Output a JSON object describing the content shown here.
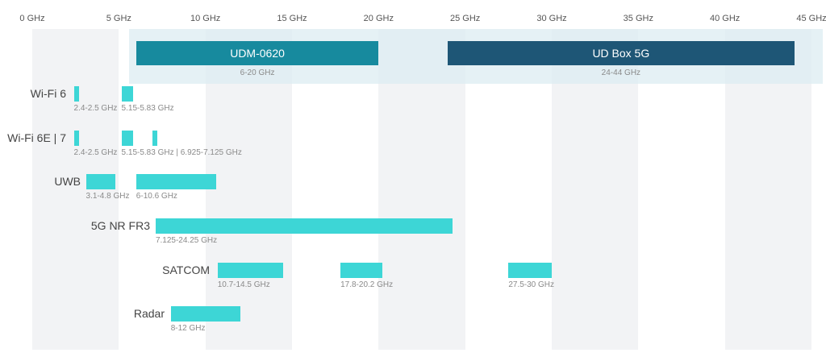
{
  "chart_data": {
    "type": "bar",
    "orientation": "horizontal-range",
    "x_axis": {
      "ticks": [
        "0 GHz",
        "5 GHz",
        "10 GHz",
        "15 GHz",
        "20 GHz",
        "25 GHz",
        "30 GHz",
        "35 GHz",
        "40 GHz",
        "45 GHz"
      ],
      "xlim": [
        0,
        45
      ],
      "unit": "GHz"
    },
    "products": [
      {
        "name": "UDM-0620",
        "start": 6,
        "end": 20,
        "range_label": "6-20 GHz",
        "color": "#178a9e"
      },
      {
        "name": "UD Box 5G",
        "start": 24,
        "end": 44,
        "range_label": "24-44 GHz",
        "color": "#1e5676"
      }
    ],
    "rows": [
      {
        "label": "Wi-Fi 6",
        "segments": [
          {
            "start": 2.4,
            "end": 2.5,
            "label": "2.4-2.5 GHz"
          },
          {
            "start": 5.15,
            "end": 5.83,
            "label": "5.15-5.83 GHz"
          }
        ]
      },
      {
        "label": "Wi-Fi 6E | 7",
        "segments": [
          {
            "start": 2.4,
            "end": 2.5,
            "label": "2.4-2.5 GHz"
          },
          {
            "start": 5.15,
            "end": 5.83,
            "label": "5.15-5.83 GHz | 6.925-7.125 GHz"
          },
          {
            "start": 6.925,
            "end": 7.125,
            "label": ""
          }
        ]
      },
      {
        "label": "UWB",
        "segments": [
          {
            "start": 3.1,
            "end": 4.8,
            "label": "3.1-4.8 GHz"
          },
          {
            "start": 6,
            "end": 10.6,
            "label": "6-10.6 GHz"
          }
        ]
      },
      {
        "label": "5G NR FR3",
        "segments": [
          {
            "start": 7.125,
            "end": 24.25,
            "label": "7.125-24.25 GHz"
          }
        ]
      },
      {
        "label": "SATCOM",
        "segments": [
          {
            "start": 10.7,
            "end": 14.5,
            "label": "10.7-14.5 GHz"
          },
          {
            "start": 17.8,
            "end": 20.2,
            "label": "17.8-20.2 GHz"
          },
          {
            "start": 27.5,
            "end": 30,
            "label": "27.5-30 GHz"
          }
        ]
      },
      {
        "label": "Radar",
        "segments": [
          {
            "start": 8,
            "end": 12,
            "label": "8-12 GHz"
          }
        ]
      }
    ],
    "colors": {
      "band": "#3dd6d6",
      "shaded_column": "#f2f3f5"
    }
  }
}
